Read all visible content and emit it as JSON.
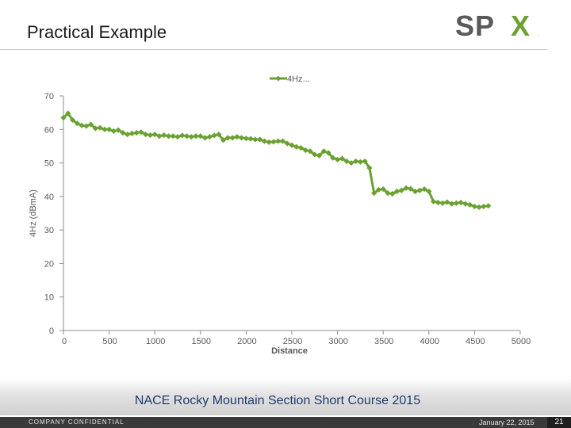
{
  "slide": {
    "title": "Practical Example",
    "logo_text": "SPX",
    "footer_title": "NACE Rocky Mountain Section Short Course 2015",
    "confidential": "COMPANY CONFIDENTIAL",
    "date": "January 22, 2015",
    "page_number": "21"
  },
  "colors": {
    "series": "#6aa232",
    "logo_dark": "#5a5a5a",
    "logo_green": "#6aa232",
    "footer_title": "#1f3a6e"
  },
  "chart_data": {
    "type": "line",
    "title": "",
    "xlabel": "Distance",
    "ylabel": "4Hz (dBmA)",
    "xlim": [
      0,
      5000
    ],
    "ylim": [
      0,
      70
    ],
    "xticks": [
      0,
      500,
      1000,
      1500,
      2000,
      2500,
      3000,
      3500,
      4000,
      4500,
      5000
    ],
    "yticks": [
      0,
      10,
      20,
      30,
      40,
      50,
      60,
      70
    ],
    "grid": false,
    "legend": "top-center",
    "series": [
      {
        "name": "4Hz...",
        "x": [
          0,
          50,
          100,
          150,
          200,
          250,
          300,
          350,
          400,
          450,
          500,
          550,
          600,
          650,
          700,
          750,
          800,
          850,
          900,
          950,
          1000,
          1050,
          1100,
          1150,
          1200,
          1250,
          1300,
          1350,
          1400,
          1450,
          1500,
          1550,
          1600,
          1650,
          1700,
          1750,
          1800,
          1850,
          1900,
          1950,
          2000,
          2050,
          2100,
          2150,
          2200,
          2250,
          2300,
          2350,
          2400,
          2450,
          2500,
          2550,
          2600,
          2650,
          2700,
          2750,
          2800,
          2850,
          2900,
          2950,
          3000,
          3050,
          3100,
          3150,
          3200,
          3250,
          3300,
          3350,
          3400,
          3450,
          3500,
          3550,
          3600,
          3650,
          3700,
          3750,
          3800,
          3850,
          3900,
          3950,
          4000,
          4050,
          4100,
          4150,
          4200,
          4250,
          4300,
          4350,
          4400,
          4450,
          4500,
          4550,
          4600,
          4650
        ],
        "y": [
          63.5,
          64.8,
          62.8,
          61.8,
          61.2,
          61.0,
          61.5,
          60.3,
          60.5,
          60.0,
          60.0,
          59.5,
          59.8,
          59.0,
          58.5,
          58.8,
          59.0,
          59.2,
          58.5,
          58.3,
          58.5,
          58.0,
          58.3,
          58.0,
          58.0,
          57.8,
          58.2,
          58.0,
          57.8,
          58.0,
          58.0,
          57.5,
          57.8,
          58.2,
          58.5,
          56.8,
          57.5,
          57.5,
          57.8,
          57.5,
          57.3,
          57.2,
          57.0,
          57.0,
          56.5,
          56.2,
          56.3,
          56.5,
          56.5,
          55.8,
          55.3,
          54.8,
          54.5,
          53.8,
          53.5,
          52.5,
          52.2,
          53.5,
          53.0,
          51.5,
          51.0,
          51.3,
          50.5,
          50.0,
          50.5,
          50.3,
          50.5,
          48.5,
          41.0,
          42.0,
          42.2,
          41.0,
          40.8,
          41.5,
          41.8,
          42.5,
          42.3,
          41.5,
          41.8,
          42.2,
          41.5,
          38.5,
          38.2,
          38.0,
          38.3,
          37.8,
          38.0,
          38.2,
          37.8,
          37.5,
          37.0,
          36.8,
          37.0,
          37.2
        ]
      }
    ]
  }
}
